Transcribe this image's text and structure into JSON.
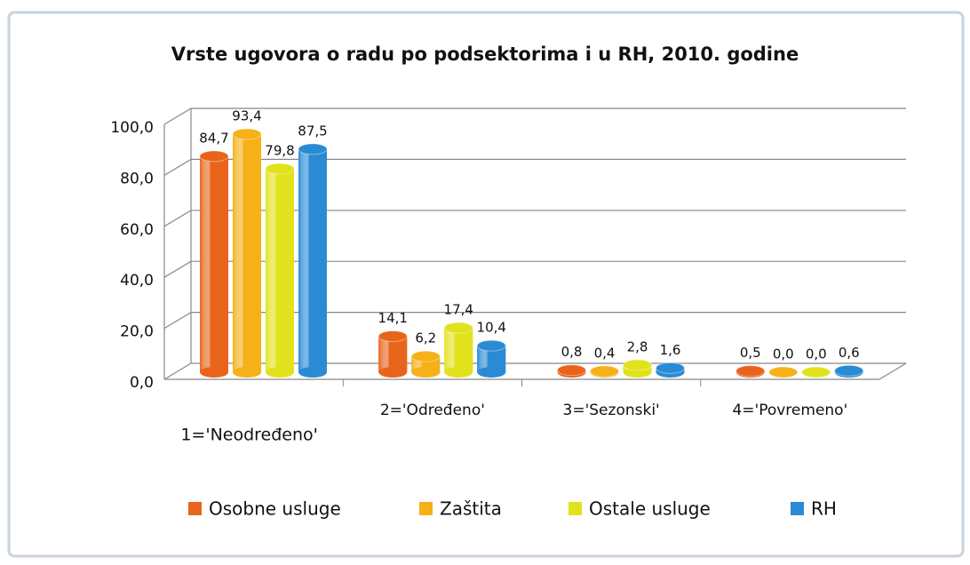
{
  "chart_data": {
    "type": "bar",
    "title": "Vrste ugovora o radu po podsektorima i u RH, 2010. godine",
    "categories": [
      "1='Neodređeno'",
      "2='Određeno'",
      "3='Sezonski'",
      "4='Povremeno'"
    ],
    "series": [
      {
        "name": "Osobne usluge",
        "color": "#e8641b",
        "values": [
          84.7,
          14.1,
          0.8,
          0.5
        ],
        "value_labels": [
          "84,7",
          "14,1",
          "0,8",
          "0,5"
        ]
      },
      {
        "name": "Zaštita",
        "color": "#f5b117",
        "values": [
          93.4,
          6.2,
          0.4,
          0.0
        ],
        "value_labels": [
          "93,4",
          "6,2",
          "0,4",
          "0,0"
        ]
      },
      {
        "name": "Ostale usluge",
        "color": "#e2e21c",
        "values": [
          79.8,
          17.4,
          2.8,
          0.0
        ],
        "value_labels": [
          "79,8",
          "17,4",
          "2,8",
          "0,0"
        ]
      },
      {
        "name": "RH",
        "color": "#2a8ad4",
        "values": [
          87.5,
          10.4,
          1.6,
          0.6
        ],
        "value_labels": [
          "87,5",
          "10,4",
          "1,6",
          "0,6"
        ]
      }
    ],
    "ylim": [
      0,
      100
    ],
    "yticks": [
      {
        "value": 0,
        "label": "0,0"
      },
      {
        "value": 20,
        "label": "20,0"
      },
      {
        "value": 40,
        "label": "40,0"
      },
      {
        "value": 60,
        "label": "60,0"
      },
      {
        "value": 80,
        "label": "80,0"
      },
      {
        "value": 100,
        "label": "100,0"
      }
    ],
    "grid": true,
    "legend": "bottom"
  }
}
